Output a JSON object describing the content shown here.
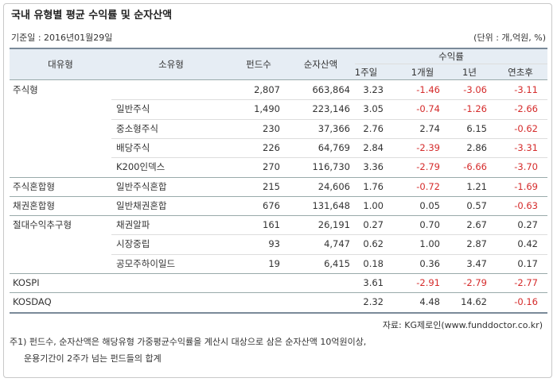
{
  "header": {
    "title": "국내 유형별 평균 수익률 및 순자산액",
    "date": "기준일 : 2016년01월29일",
    "unit": "(단위 : 개,억원, %)"
  },
  "table": {
    "columns": [
      "대유형",
      "소유형",
      "펀드수",
      "순자산액"
    ],
    "return_group": "수익률",
    "return_columns": [
      "1주일",
      "1개월",
      "1년",
      "연초후"
    ],
    "rows": [
      [
        "주식형",
        null,
        "2,807",
        "663,864",
        "3.23",
        "-1.46",
        "-3.06",
        "-3.11"
      ],
      [
        null,
        "일반주식",
        "1,490",
        "223,146",
        "3.05",
        "-0.74",
        "-1.26",
        "-2.66"
      ],
      [
        null,
        "중소형주식",
        "230",
        "37,366",
        "2.76",
        "2.74",
        "6.15",
        "-0.62"
      ],
      [
        null,
        "배당주식",
        "226",
        "64,769",
        "2.84",
        "-2.39",
        "2.86",
        "-3.31"
      ],
      [
        null,
        "K200인덱스",
        "270",
        "116,730",
        "3.36",
        "-2.79",
        "-6.66",
        "-3.70"
      ],
      [
        "주식혼합형",
        "일반주식혼합",
        "215",
        "24,606",
        "1.76",
        "-0.72",
        "1.21",
        "-1.69"
      ],
      [
        "채권혼합형",
        "일반채권혼합",
        "676",
        "131,648",
        "1.00",
        "0.05",
        "0.57",
        "-0.63"
      ],
      [
        "절대수익추구형",
        "채권알파",
        "161",
        "26,191",
        "0.27",
        "0.70",
        "2.67",
        "0.27"
      ],
      [
        null,
        "시장중립",
        "93",
        "4,747",
        "0.62",
        "1.00",
        "2.87",
        "0.42"
      ],
      [
        null,
        "공모주하이일드",
        "19",
        "6,415",
        "0.18",
        "0.36",
        "3.47",
        "0.17"
      ],
      [
        "KOSPI",
        null,
        null,
        null,
        "3.61",
        "-2.91",
        "-2.79",
        "-2.77"
      ],
      [
        "KOSDAQ",
        null,
        null,
        null,
        "2.32",
        "4.48",
        "14.62",
        "-0.16"
      ]
    ]
  },
  "footer": {
    "source": "자료: KG제로인(www.funddoctor.co.kr)",
    "notes": [
      "주1) 펀드수, 순자산액은 해당유형 가중평균수익률을 계산시 대상으로 삼은 순자산액 10억원이상,",
      "운용기간이 2주가 넘는 펀드들의 합계"
    ]
  }
}
